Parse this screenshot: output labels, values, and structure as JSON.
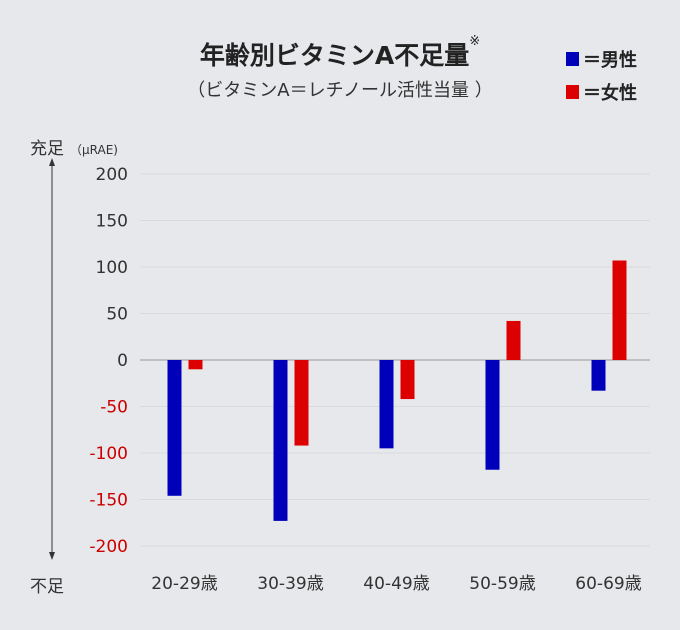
{
  "chart_data": {
    "type": "bar",
    "title": "年齢別ビタミンA不足量",
    "title_note": "※",
    "subtitle": "（ビタミンA＝レチノール活性当量 ）",
    "ylabel_top": "充足",
    "ylabel_unit": "（μRAE)",
    "ylabel_bottom": "不足",
    "categories": [
      "20-29歳",
      "30-39歳",
      "40-49歳",
      "50-59歳",
      "60-69歳"
    ],
    "series": [
      {
        "name": "＝男性",
        "color": "#0000bb",
        "values": [
          -146,
          -173,
          -95,
          -118,
          -33
        ]
      },
      {
        "name": "＝女性",
        "color": "#dd0000",
        "values": [
          -10,
          -92,
          -42,
          42,
          107
        ]
      }
    ],
    "ylim": [
      -200,
      200
    ],
    "yticks": [
      200,
      150,
      100,
      50,
      0,
      -50,
      -100,
      -150,
      -200
    ],
    "ytick_labels": [
      "200",
      "150",
      "100",
      "50",
      "0",
      "-50",
      "-100",
      "-150",
      "-200"
    ],
    "negative_tick_color": "#cc0000",
    "grid": true,
    "legend_position": "top-right"
  }
}
